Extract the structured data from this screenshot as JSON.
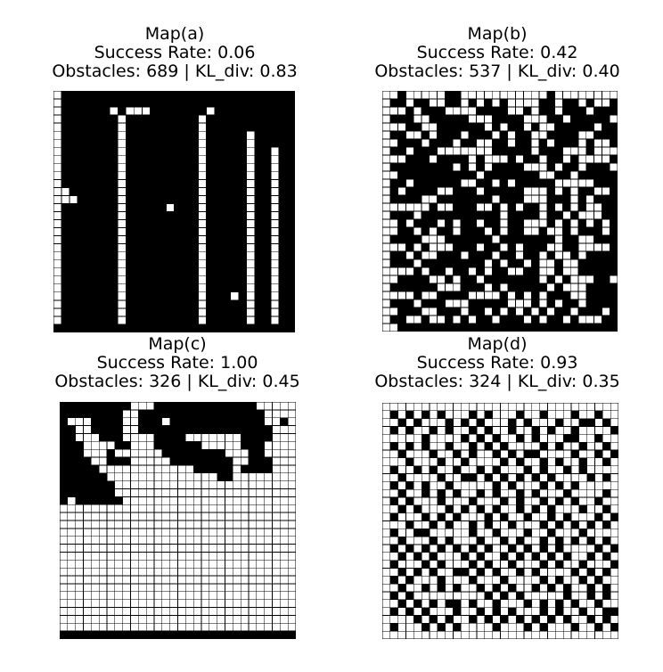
{
  "colors": {
    "obstacle": "#000000",
    "free": "#ffffff",
    "gridline": "#000000"
  },
  "maps": [
    {
      "title": "Map(a)",
      "success": "Success Rate: 0.06",
      "stats": "Obstacles: 689 | KL_div: 0.83",
      "rows": [
        "011111111111111111111111111111",
        "011111111111111111111111111111",
        "011111101000111111101111111111",
        "011111110111111111011111111111",
        "011111110111111111011111111111",
        "011111110111111111011111011111",
        "011111110111111111011111011111",
        "011111110111111111011111011011",
        "011111110111111111011111011011",
        "011111110111111111011111011011",
        "011111110111111111011111011011",
        "011111110111111111011111011011",
        "001111110111111111011111011011",
        "000111110111111111011111011011",
        "011111110111110111011111011011",
        "011111110111111111011111011011",
        "011111110111111111011111011011",
        "011111110111111111011111011011",
        "011111110111111111011111011011",
        "011111110111111111011111011011",
        "011111110111111111011111011011",
        "011111110111111111011111011011",
        "011111110111111111011111011011",
        "011111110111111111011111011011",
        "011111110111111111011111011011",
        "011111110111111111011101011011",
        "011111110111111111011111011011",
        "011111110111111111011111011011",
        "011111110111111111011111011011",
        "111111111111111111111111111111"
      ]
    },
    {
      "title": "Map(b)",
      "success": "Success Rate: 0.42",
      "stats": "Obstacles: 537 | KL_div: 0.40",
      "rows": [
        "001000001100000000000100000000",
        "011011001101010100001101101001",
        "000101110000111100101101110111",
        "011100111110001111000110111110",
        "000110011111101011010011111011",
        "011001011101110101100111100111",
        "001110111011001101101011101001",
        "011011100000001111101110001000",
        "000111011110100010110110100001",
        "011111111010101111000101101110",
        "001111111111011111110011011111",
        "011011111100110101111100000111",
        "010111100111011111000101011001",
        "011110011111110111000111010111",
        "000000100111001010110101010011",
        "011101111111111011110110100011",
        "001011101011011011000101010101",
        "001101011011101011001001011101",
        "011110001111110111111101100111",
        "000101000111011010111001100001",
        "011010011101110110110100101111",
        "011101111111101011010010011111",
        "000010110110101100110010011111",
        "001111001011011111110101000110",
        "011111100011101011111010001111",
        "000010011110000101010111001111",
        "011101110001111100010101101111",
        "001110011101101010101011011101",
        "011001001010110111010110100011",
        "001111111111111111111111111111"
      ]
    },
    {
      "title": "Map(c)",
      "success": "Success Rate: 1.00",
      "stats": "Obstacles: 326 | KL_div: 0.45",
      "rows": [
        "111111111000111111111111100000",
        "111111110011111111111111110000",
        "100011110011101111111111110010",
        "110011110011111111111111111000",
        "110001110000111100000001111000",
        "111000011000111111000001110000",
        "111000100000011111111000110000",
        "111100111000001111111100111000",
        "111110000000000001111101111000",
        "111111000000000000001100000000",
        "111111100000000000000000000000",
        "111111100000000000000000000000",
        "101111110000000000000000000000",
        "000000000000000000000000000000",
        "000000000000000000000000000000",
        "000000000000000000000000000000",
        "000000000000000000000000000000",
        "000000000000000000000000000000",
        "000000000000000000000000000000",
        "000000000000000000000000000000",
        "000000000000000000000000000000",
        "000000000000000000000000000000",
        "000000000000000000000000000000",
        "000000000000000000000000000000",
        "000000000000000000000000000000",
        "000000000000000000000000000000",
        "000000000000000000000000000000",
        "000000000000000000000000000000",
        "000000000000000000000000000000",
        "111111111111111111111111111111"
      ]
    },
    {
      "title": "Map(d)",
      "success": "Success Rate: 0.93",
      "stats": "Obstacles: 324 | KL_div: 0.35",
      "rows": [
        "000000000000000000000000000000",
        "010101010001010001001000100100",
        "001010001010100010100010011010",
        "010100101001010010010100100001",
        "000001000010101001010001100100",
        "010101001001010100001010010010",
        "001000100101001010110000100101",
        "000100010010000101001010010010",
        "010010100100101000101001010000",
        "001000010011010101010100001010",
        "010101001000001010001010100000",
        "001001010100101001010001000010",
        "010100010001000101001010100100",
        "001010001010101001010100010010",
        "010001010100010100100101000101",
        "000100101001010010001010101010",
        "010011000001001000100100010000",
        "001000101000100101001010101010",
        "010101010101010010101010000101",
        "001010100010100101010101001010",
        "010001010001010010001010010001",
        "001010100110101001010000101010",
        "010100010001000100001010010100",
        "001001010100101010010101001010",
        "010100000000010101000001001010",
        "001010101101001000101010100100",
        "010101000100101010001010010011",
        "000010101001010101010101001010",
        "010001010100001000101000100101",
        "000000000000000000000000000000"
      ]
    }
  ]
}
